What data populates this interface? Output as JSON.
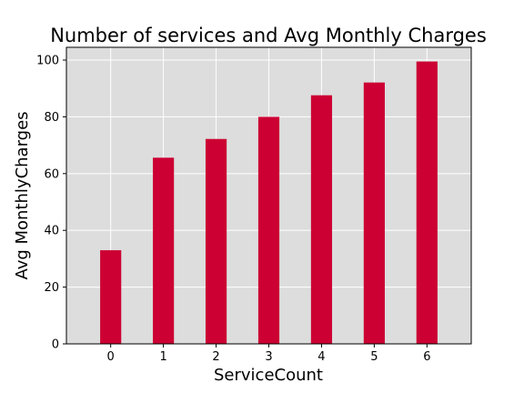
{
  "chart_data": {
    "type": "bar",
    "title": "Number of services and Avg Monthly Charges",
    "xlabel": "ServiceCount",
    "ylabel": "Avg MonthlyCharges",
    "categories": [
      "0",
      "1",
      "2",
      "3",
      "4",
      "5",
      "6"
    ],
    "values": [
      33,
      65.6,
      72.2,
      80,
      87.6,
      92.1,
      99.5
    ],
    "ylim": [
      0,
      104.5
    ],
    "yticks": [
      0,
      20,
      40,
      60,
      80,
      100
    ],
    "grid": true,
    "bar_color": "#cc0033",
    "background_color": "#dddddd"
  }
}
